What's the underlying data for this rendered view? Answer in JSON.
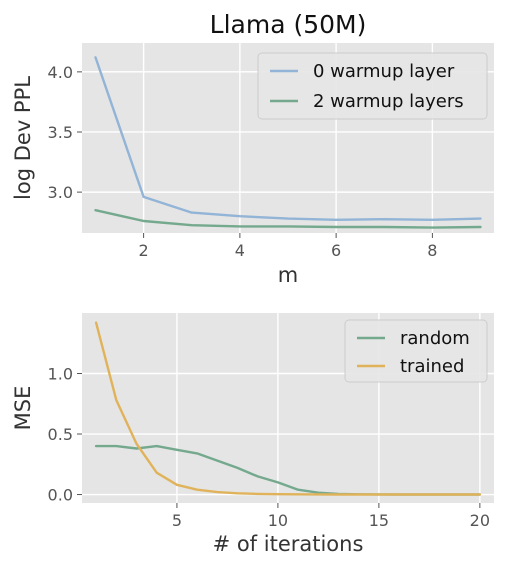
{
  "chart_data": [
    {
      "type": "line",
      "title": "Llama (50M)",
      "xlabel": "m",
      "ylabel": "log Dev PPL",
      "x": [
        1,
        2,
        3,
        4,
        5,
        6,
        7,
        8,
        9
      ],
      "xlim": [
        0.72,
        9.28
      ],
      "ylim": [
        2.66,
        4.24
      ],
      "xticks": [
        2,
        4,
        6,
        8
      ],
      "yticks": [
        3.0,
        3.5,
        4.0
      ],
      "xtick_labels": [
        "2",
        "4",
        "6",
        "8"
      ],
      "ytick_labels": [
        "3.0",
        "3.5",
        "4.0"
      ],
      "grid": true,
      "legend_position": "upper right",
      "series": [
        {
          "name": "0 warmup layer",
          "color": "#92b4d6",
          "values": [
            4.12,
            2.96,
            2.83,
            2.8,
            2.78,
            2.77,
            2.775,
            2.77,
            2.78
          ]
        },
        {
          "name": "2 warmup layers",
          "color": "#74a98e",
          "values": [
            2.85,
            2.76,
            2.725,
            2.715,
            2.715,
            2.71,
            2.71,
            2.705,
            2.71
          ]
        }
      ]
    },
    {
      "type": "line",
      "title": "",
      "xlabel": "# of iterations",
      "ylabel": "MSE",
      "x": [
        1,
        2,
        3,
        4,
        5,
        6,
        7,
        8,
        9,
        10,
        11,
        12,
        13,
        14,
        15,
        16,
        17,
        18,
        19,
        20
      ],
      "xlim": [
        0.3,
        20.7
      ],
      "ylim": [
        -0.07,
        1.5
      ],
      "xticks": [
        5,
        10,
        15,
        20
      ],
      "yticks": [
        0.0,
        0.5,
        1.0
      ],
      "xtick_labels": [
        "5",
        "10",
        "15",
        "20"
      ],
      "ytick_labels": [
        "0.0",
        "0.5",
        "1.0"
      ],
      "grid": true,
      "legend_position": "upper right",
      "series": [
        {
          "name": "random",
          "color": "#74a98e",
          "values": [
            0.4,
            0.4,
            0.38,
            0.4,
            0.37,
            0.34,
            0.28,
            0.22,
            0.15,
            0.1,
            0.04,
            0.015,
            0.005,
            0.002,
            0.001,
            0.0,
            0.0,
            0.0,
            0.0,
            0.0
          ]
        },
        {
          "name": "trained",
          "color": "#e0b35a",
          "values": [
            1.42,
            0.78,
            0.42,
            0.18,
            0.08,
            0.04,
            0.02,
            0.01,
            0.005,
            0.003,
            0.002,
            0.001,
            0.0,
            0.0,
            0.0,
            0.0,
            0.0,
            0.0,
            0.0,
            0.0
          ]
        }
      ]
    }
  ]
}
